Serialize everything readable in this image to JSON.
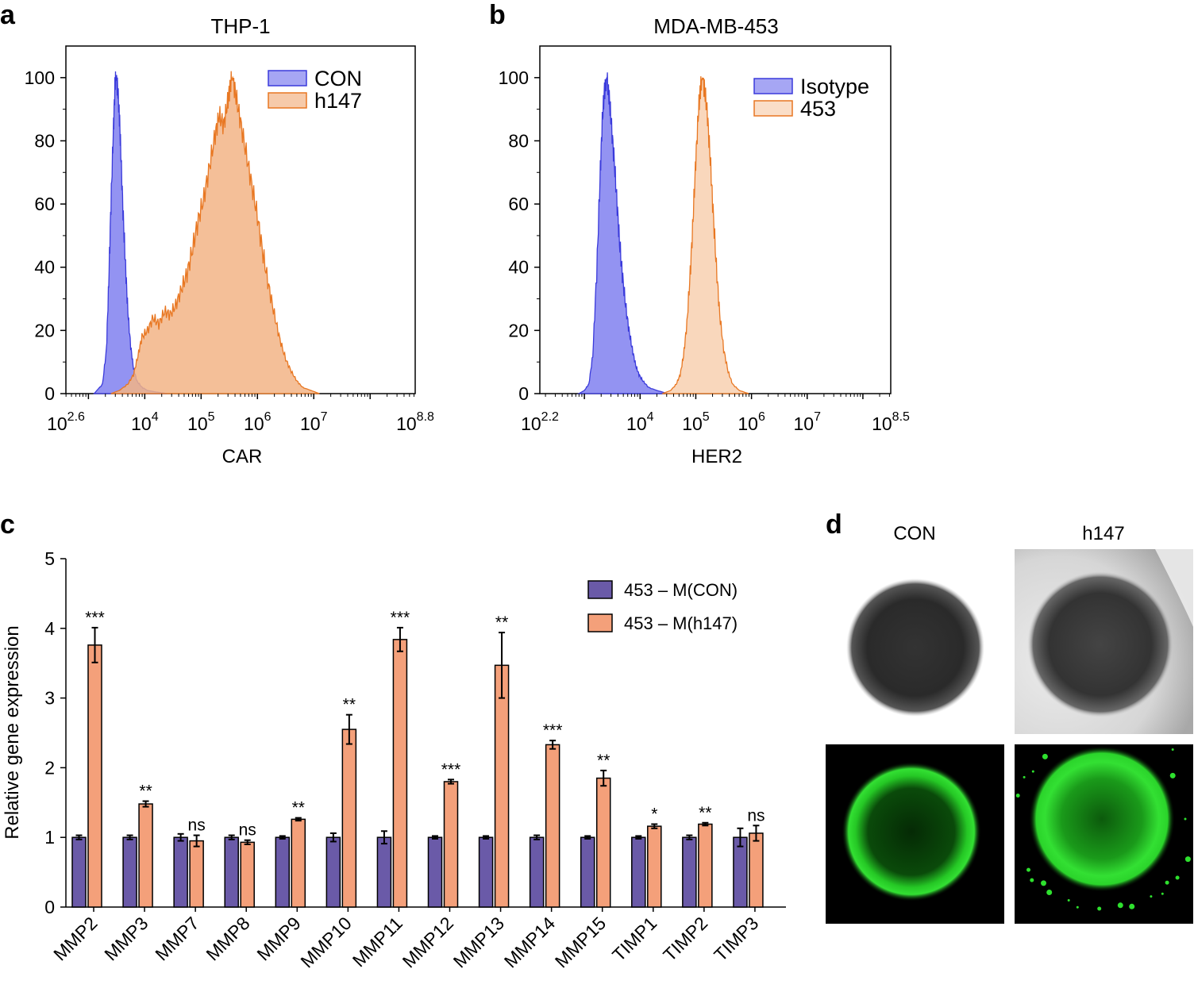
{
  "panels": {
    "a": {
      "letter": "a",
      "chart_data": {
        "type": "area",
        "title": "THP-1",
        "xlabel": "CAR",
        "ylabel": "",
        "x_scale": "log10",
        "xlim_log10": [
          2.6,
          8.8
        ],
        "ylim": [
          0,
          110
        ],
        "yticks": [
          0,
          20,
          40,
          60,
          80,
          100
        ],
        "xticks": [
          {
            "base": "10",
            "exp": "2.6",
            "log": 2.6
          },
          {
            "base": "10",
            "exp": "4",
            "log": 4
          },
          {
            "base": "10",
            "exp": "5",
            "log": 5
          },
          {
            "base": "10",
            "exp": "6",
            "log": 6
          },
          {
            "base": "10",
            "exp": "7",
            "log": 7
          },
          {
            "base": "10",
            "exp": "8.8",
            "log": 8.8
          }
        ],
        "legend_position": "top-right",
        "series": [
          {
            "name": "CON",
            "color": "#3a3adb",
            "fill": "#8080f0",
            "points": [
              [
                3.1,
                0
              ],
              [
                3.25,
                3
              ],
              [
                3.32,
                14
              ],
              [
                3.36,
                35
              ],
              [
                3.4,
                60
              ],
              [
                3.44,
                82
              ],
              [
                3.47,
                97
              ],
              [
                3.49,
                100
              ],
              [
                3.52,
                96
              ],
              [
                3.55,
                88
              ],
              [
                3.58,
                74
              ],
              [
                3.62,
                55
              ],
              [
                3.66,
                40
              ],
              [
                3.7,
                26
              ],
              [
                3.75,
                15
              ],
              [
                3.8,
                8
              ],
              [
                3.86,
                4
              ],
              [
                3.95,
                2
              ],
              [
                4.05,
                1
              ],
              [
                4.2,
                0.5
              ],
              [
                4.4,
                0
              ]
            ]
          },
          {
            "name": "h147",
            "color": "#e87722",
            "fill": "#f2b486",
            "points": [
              [
                3.4,
                0
              ],
              [
                3.55,
                1
              ],
              [
                3.7,
                3
              ],
              [
                3.8,
                6
              ],
              [
                3.88,
                12
              ],
              [
                3.95,
                18
              ],
              [
                4.05,
                20
              ],
              [
                4.15,
                24
              ],
              [
                4.25,
                22
              ],
              [
                4.35,
                26
              ],
              [
                4.45,
                25
              ],
              [
                4.55,
                28
              ],
              [
                4.65,
                33
              ],
              [
                4.75,
                38
              ],
              [
                4.85,
                46
              ],
              [
                4.95,
                55
              ],
              [
                5.05,
                62
              ],
              [
                5.15,
                72
              ],
              [
                5.25,
                82
              ],
              [
                5.32,
                88
              ],
              [
                5.4,
                85
              ],
              [
                5.47,
                92
              ],
              [
                5.52,
                98
              ],
              [
                5.56,
                100
              ],
              [
                5.62,
                94
              ],
              [
                5.7,
                86
              ],
              [
                5.8,
                76
              ],
              [
                5.9,
                66
              ],
              [
                6.0,
                56
              ],
              [
                6.1,
                44
              ],
              [
                6.2,
                34
              ],
              [
                6.3,
                25
              ],
              [
                6.4,
                17
              ],
              [
                6.5,
                11
              ],
              [
                6.6,
                7
              ],
              [
                6.7,
                4
              ],
              [
                6.8,
                2
              ],
              [
                6.95,
                1
              ],
              [
                7.1,
                0
              ]
            ]
          }
        ]
      }
    },
    "b": {
      "letter": "b",
      "chart_data": {
        "type": "area",
        "title": "MDA-MB-453",
        "xlabel": "HER2",
        "ylabel": "",
        "x_scale": "log10",
        "xlim_log10": [
          2.2,
          8.5
        ],
        "ylim": [
          0,
          110
        ],
        "yticks": [
          0,
          20,
          40,
          60,
          80,
          100
        ],
        "xticks": [
          {
            "base": "10",
            "exp": "2.2",
            "log": 2.2
          },
          {
            "base": "10",
            "exp": "4",
            "log": 4
          },
          {
            "base": "10",
            "exp": "5",
            "log": 5
          },
          {
            "base": "10",
            "exp": "6",
            "log": 6
          },
          {
            "base": "10",
            "exp": "7",
            "log": 7
          },
          {
            "base": "10",
            "exp": "8.5",
            "log": 8.5
          }
        ],
        "legend_position": "top-right",
        "series": [
          {
            "name": "Isotype",
            "color": "#3a3adb",
            "fill": "#8080f0",
            "points": [
              [
                2.9,
                0
              ],
              [
                3.0,
                1
              ],
              [
                3.08,
                3
              ],
              [
                3.15,
                12
              ],
              [
                3.22,
                38
              ],
              [
                3.28,
                68
              ],
              [
                3.32,
                86
              ],
              [
                3.36,
                96
              ],
              [
                3.4,
                100
              ],
              [
                3.44,
                95
              ],
              [
                3.48,
                86
              ],
              [
                3.53,
                75
              ],
              [
                3.58,
                62
              ],
              [
                3.63,
                48
              ],
              [
                3.68,
                38
              ],
              [
                3.74,
                28
              ],
              [
                3.8,
                20
              ],
              [
                3.86,
                14
              ],
              [
                3.92,
                9
              ],
              [
                3.98,
                6
              ],
              [
                4.05,
                4
              ],
              [
                4.15,
                2
              ],
              [
                4.3,
                1
              ],
              [
                4.5,
                0
              ]
            ]
          },
          {
            "name": "453",
            "color": "#e87722",
            "fill": "#f8d0b0",
            "points": [
              [
                4.4,
                0
              ],
              [
                4.55,
                1
              ],
              [
                4.65,
                3
              ],
              [
                4.72,
                6
              ],
              [
                4.78,
                12
              ],
              [
                4.84,
                22
              ],
              [
                4.9,
                38
              ],
              [
                4.95,
                55
              ],
              [
                5.0,
                74
              ],
              [
                5.05,
                90
              ],
              [
                5.09,
                98
              ],
              [
                5.12,
                100
              ],
              [
                5.16,
                96
              ],
              [
                5.21,
                88
              ],
              [
                5.26,
                74
              ],
              [
                5.31,
                58
              ],
              [
                5.37,
                40
              ],
              [
                5.43,
                25
              ],
              [
                5.5,
                14
              ],
              [
                5.58,
                7
              ],
              [
                5.66,
                3
              ],
              [
                5.78,
                1
              ],
              [
                5.95,
                0
              ]
            ]
          }
        ]
      }
    },
    "c": {
      "letter": "c",
      "chart_data": {
        "type": "bar",
        "title": "",
        "xlabel": "",
        "ylabel": "Relative gene expression",
        "ylim": [
          0,
          5
        ],
        "yticks": [
          0,
          1,
          2,
          3,
          4,
          5
        ],
        "legend_position": "top-right",
        "categories": [
          "MMP2",
          "MMP3",
          "MMP7",
          "MMP8",
          "MMP9",
          "MMP10",
          "MMP11",
          "MMP12",
          "MMP13",
          "MMP14",
          "MMP15",
          "TIMP1",
          "TIMP2",
          "TIMP3"
        ],
        "series": [
          {
            "name": "453 – M(CON)",
            "color": "#6a5aa8",
            "values": [
              1.0,
              1.0,
              1.0,
              1.0,
              1.0,
              1.0,
              1.0,
              1.0,
              1.0,
              1.0,
              1.0,
              1.0,
              1.0,
              1.0
            ],
            "errors": [
              0.03,
              0.03,
              0.05,
              0.03,
              0.02,
              0.06,
              0.09,
              0.02,
              0.02,
              0.03,
              0.02,
              0.02,
              0.03,
              0.13
            ]
          },
          {
            "name": "453 – M(h147)",
            "color": "#f4a07a",
            "values": [
              3.76,
              1.48,
              0.95,
              0.93,
              1.26,
              2.55,
              3.84,
              1.8,
              3.47,
              2.33,
              1.85,
              1.16,
              1.19,
              1.06
            ],
            "errors": [
              0.25,
              0.04,
              0.08,
              0.03,
              0.02,
              0.21,
              0.17,
              0.03,
              0.47,
              0.06,
              0.11,
              0.03,
              0.02,
              0.11
            ]
          }
        ],
        "significance": [
          "***",
          "**",
          "ns",
          "ns",
          "**",
          "**",
          "***",
          "***",
          "**",
          "***",
          "**",
          "*",
          "**",
          "ns"
        ]
      }
    },
    "d": {
      "letter": "d",
      "labels": [
        "CON",
        "h147"
      ],
      "images": [
        {
          "condition": "CON",
          "type": "brightfield"
        },
        {
          "condition": "h147",
          "type": "brightfield"
        },
        {
          "condition": "CON",
          "type": "fluorescence"
        },
        {
          "condition": "h147",
          "type": "fluorescence"
        }
      ],
      "colors": {
        "fluorescence": "#2ee02e",
        "background": "#000000"
      }
    }
  }
}
